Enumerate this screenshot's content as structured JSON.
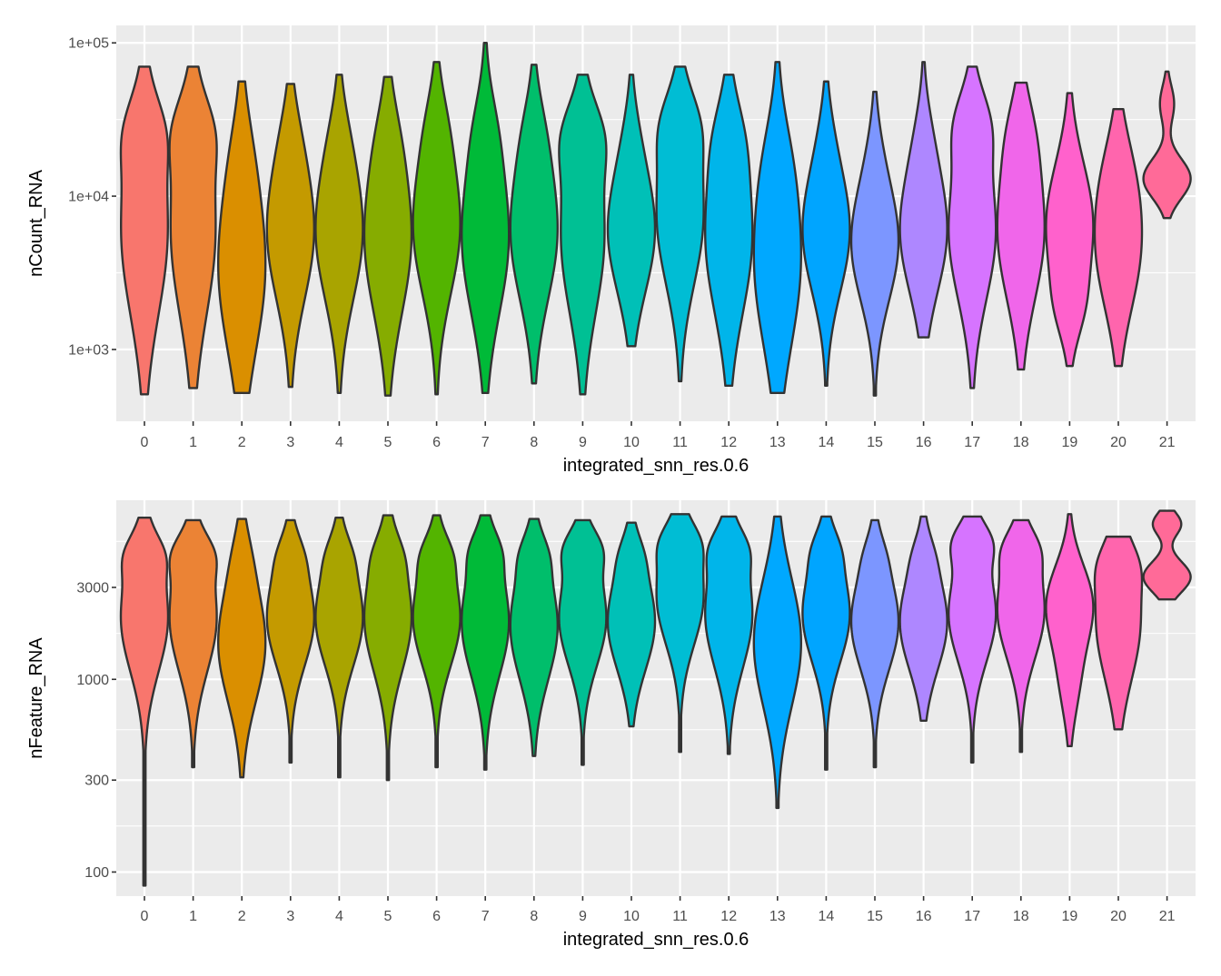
{
  "chart_data": [
    {
      "type": "violin",
      "ylabel": "nCount_RNA",
      "xlabel": "integrated_snn_res.0.6",
      "y_scale": "log10",
      "ylim": [
        340,
        130000
      ],
      "yticks": [
        {
          "value": 1000,
          "label": "1e+03"
        },
        {
          "value": 10000,
          "label": "1e+04"
        },
        {
          "value": 100000,
          "label": "1e+05"
        }
      ],
      "categories": [
        "0",
        "1",
        "2",
        "3",
        "4",
        "5",
        "6",
        "7",
        "8",
        "9",
        "10",
        "11",
        "12",
        "13",
        "14",
        "15",
        "16",
        "17",
        "18",
        "19",
        "20",
        "21"
      ],
      "series": [
        {
          "category": "0",
          "min": 510,
          "max": 70000,
          "modes": [
            [
              6000,
              1.0,
              0.55
            ],
            [
              27000,
              0.45,
              0.22
            ]
          ]
        },
        {
          "category": "1",
          "min": 560,
          "max": 70000,
          "modes": [
            [
              6000,
              1.0,
              0.55
            ],
            [
              27000,
              0.5,
              0.22
            ]
          ]
        },
        {
          "category": "2",
          "min": 520,
          "max": 56000,
          "modes": [
            [
              3500,
              1.0,
              0.55
            ],
            [
              20000,
              0.15,
              0.3
            ]
          ]
        },
        {
          "category": "3",
          "min": 570,
          "max": 54000,
          "modes": [
            [
              6000,
              1.0,
              0.45
            ],
            [
              25000,
              0.12,
              0.25
            ]
          ]
        },
        {
          "category": "4",
          "min": 520,
          "max": 62000,
          "modes": [
            [
              6000,
              1.0,
              0.45
            ],
            [
              25000,
              0.12,
              0.25
            ]
          ]
        },
        {
          "category": "5",
          "min": 500,
          "max": 60000,
          "modes": [
            [
              5500,
              1.0,
              0.5
            ],
            [
              25000,
              0.15,
              0.25
            ]
          ]
        },
        {
          "category": "6",
          "min": 510,
          "max": 75000,
          "modes": [
            [
              6500,
              1.0,
              0.45
            ],
            [
              30000,
              0.2,
              0.25
            ]
          ]
        },
        {
          "category": "7",
          "min": 520,
          "max": 100000,
          "modes": [
            [
              5500,
              1.0,
              0.5
            ],
            [
              28000,
              0.2,
              0.25
            ]
          ]
        },
        {
          "category": "8",
          "min": 600,
          "max": 72000,
          "modes": [
            [
              6000,
              1.0,
              0.45
            ],
            [
              27000,
              0.2,
              0.25
            ]
          ]
        },
        {
          "category": "9",
          "min": 510,
          "max": 62000,
          "modes": [
            [
              5500,
              0.9,
              0.5
            ],
            [
              25000,
              0.55,
              0.22
            ]
          ]
        },
        {
          "category": "10",
          "min": 1050,
          "max": 62000,
          "modes": [
            [
              6000,
              1.0,
              0.4
            ],
            [
              25000,
              0.12,
              0.25
            ]
          ]
        },
        {
          "category": "11",
          "min": 620,
          "max": 70000,
          "modes": [
            [
              7500,
              1.0,
              0.45
            ],
            [
              30000,
              0.5,
              0.22
            ]
          ]
        },
        {
          "category": "12",
          "min": 580,
          "max": 62000,
          "modes": [
            [
              5500,
              1.0,
              0.5
            ],
            [
              25000,
              0.3,
              0.25
            ]
          ]
        },
        {
          "category": "13",
          "min": 520,
          "max": 75000,
          "modes": [
            [
              3800,
              1.0,
              0.55
            ],
            [
              18000,
              0.2,
              0.3
            ]
          ]
        },
        {
          "category": "14",
          "min": 580,
          "max": 56000,
          "modes": [
            [
              6000,
              1.0,
              0.4
            ],
            [
              25000,
              0.1,
              0.25
            ]
          ]
        },
        {
          "category": "15",
          "min": 500,
          "max": 48000,
          "modes": [
            [
              5000,
              1.0,
              0.38
            ],
            [
              20000,
              0.1,
              0.25
            ]
          ]
        },
        {
          "category": "16",
          "min": 1200,
          "max": 75000,
          "modes": [
            [
              6000,
              1.0,
              0.4
            ],
            [
              25000,
              0.15,
              0.25
            ]
          ]
        },
        {
          "category": "17",
          "min": 560,
          "max": 70000,
          "modes": [
            [
              6000,
              0.95,
              0.45
            ],
            [
              30000,
              0.5,
              0.22
            ]
          ]
        },
        {
          "category": "18",
          "min": 740,
          "max": 55000,
          "modes": [
            [
              6000,
              1.0,
              0.45
            ],
            [
              27000,
              0.3,
              0.25
            ]
          ]
        },
        {
          "category": "19",
          "min": 780,
          "max": 47000,
          "modes": [
            [
              6500,
              1.0,
              0.4
            ],
            [
              1800,
              0.3,
              0.2
            ]
          ]
        },
        {
          "category": "20",
          "min": 780,
          "max": 37000,
          "modes": [
            [
              4500,
              0.8,
              0.4
            ],
            [
              15000,
              0.3,
              0.3
            ]
          ]
        },
        {
          "category": "21",
          "min": 7200,
          "max": 65000,
          "modes": [
            [
              13000,
              1.0,
              0.13
            ],
            [
              40000,
              0.3,
              0.12
            ]
          ]
        }
      ]
    },
    {
      "type": "violin",
      "ylabel": "nFeature_RNA",
      "xlabel": "integrated_snn_res.0.6",
      "y_scale": "log10",
      "ylim": [
        75,
        8500
      ],
      "yticks": [
        {
          "value": 100,
          "label": "100"
        },
        {
          "value": 300,
          "label": "300"
        },
        {
          "value": 1000,
          "label": "1000"
        },
        {
          "value": 3000,
          "label": "3000"
        }
      ],
      "categories": [
        "0",
        "1",
        "2",
        "3",
        "4",
        "5",
        "6",
        "7",
        "8",
        "9",
        "10",
        "11",
        "12",
        "13",
        "14",
        "15",
        "16",
        "17",
        "18",
        "19",
        "20",
        "21"
      ],
      "series": [
        {
          "category": "0",
          "min": 85,
          "max": 6900,
          "modes": [
            [
              2100,
              1.0,
              0.28
            ],
            [
              4500,
              0.4,
              0.1
            ]
          ]
        },
        {
          "category": "1",
          "min": 350,
          "max": 6700,
          "modes": [
            [
              2100,
              1.0,
              0.28
            ],
            [
              4500,
              0.45,
              0.1
            ]
          ]
        },
        {
          "category": "2",
          "min": 310,
          "max": 6800,
          "modes": [
            [
              1550,
              1.0,
              0.3
            ],
            [
              4500,
              0.15,
              0.15
            ]
          ]
        },
        {
          "category": "3",
          "min": 370,
          "max": 6700,
          "modes": [
            [
              2100,
              1.0,
              0.25
            ],
            [
              4500,
              0.2,
              0.1
            ]
          ]
        },
        {
          "category": "4",
          "min": 310,
          "max": 6900,
          "modes": [
            [
              2100,
              1.0,
              0.25
            ],
            [
              4500,
              0.2,
              0.1
            ]
          ]
        },
        {
          "category": "5",
          "min": 300,
          "max": 7100,
          "modes": [
            [
              2100,
              1.0,
              0.28
            ],
            [
              4500,
              0.2,
              0.1
            ]
          ]
        },
        {
          "category": "6",
          "min": 350,
          "max": 7100,
          "modes": [
            [
              2100,
              1.0,
              0.25
            ],
            [
              4500,
              0.3,
              0.1
            ]
          ]
        },
        {
          "category": "7",
          "min": 340,
          "max": 7100,
          "modes": [
            [
              2000,
              1.0,
              0.28
            ],
            [
              4700,
              0.3,
              0.1
            ]
          ]
        },
        {
          "category": "8",
          "min": 400,
          "max": 6800,
          "modes": [
            [
              1900,
              1.0,
              0.28
            ],
            [
              4500,
              0.25,
              0.1
            ]
          ]
        },
        {
          "category": "9",
          "min": 360,
          "max": 6700,
          "modes": [
            [
              2100,
              1.0,
              0.25
            ],
            [
              4800,
              0.5,
              0.1
            ]
          ]
        },
        {
          "category": "10",
          "min": 570,
          "max": 6500,
          "modes": [
            [
              2000,
              1.0,
              0.25
            ],
            [
              4500,
              0.2,
              0.1
            ]
          ]
        },
        {
          "category": "11",
          "min": 420,
          "max": 7200,
          "modes": [
            [
              2700,
              1.0,
              0.25
            ],
            [
              5200,
              0.4,
              0.1
            ]
          ]
        },
        {
          "category": "12",
          "min": 410,
          "max": 7000,
          "modes": [
            [
              2200,
              1.0,
              0.28
            ],
            [
              4800,
              0.4,
              0.1
            ]
          ]
        },
        {
          "category": "13",
          "min": 215,
          "max": 7000,
          "modes": [
            [
              1550,
              1.0,
              0.33
            ]
          ]
        },
        {
          "category": "14",
          "min": 340,
          "max": 7000,
          "modes": [
            [
              2200,
              1.0,
              0.25
            ],
            [
              4800,
              0.25,
              0.1
            ]
          ]
        },
        {
          "category": "15",
          "min": 350,
          "max": 6700,
          "modes": [
            [
              2000,
              1.0,
              0.25
            ],
            [
              4500,
              0.15,
              0.1
            ]
          ]
        },
        {
          "category": "16",
          "min": 610,
          "max": 7000,
          "modes": [
            [
              2000,
              1.0,
              0.25
            ],
            [
              4500,
              0.15,
              0.1
            ]
          ]
        },
        {
          "category": "17",
          "min": 370,
          "max": 7000,
          "modes": [
            [
              2200,
              0.9,
              0.25
            ],
            [
              5200,
              0.5,
              0.1
            ]
          ]
        },
        {
          "category": "18",
          "min": 420,
          "max": 6700,
          "modes": [
            [
              2300,
              1.0,
              0.25
            ],
            [
              4800,
              0.4,
              0.1
            ]
          ]
        },
        {
          "category": "19",
          "min": 450,
          "max": 7200,
          "modes": [
            [
              2500,
              1.0,
              0.2
            ],
            [
              1000,
              0.4,
              0.2
            ]
          ]
        },
        {
          "category": "20",
          "min": 550,
          "max": 5500,
          "modes": [
            [
              2000,
              0.8,
              0.3
            ],
            [
              4000,
              0.3,
              0.12
            ]
          ]
        },
        {
          "category": "21",
          "min": 2600,
          "max": 7500,
          "modes": [
            [
              3400,
              1.0,
              0.08
            ],
            [
              6400,
              0.6,
              0.06
            ]
          ]
        }
      ]
    }
  ],
  "colors": [
    "#F8766D",
    "#EB8335",
    "#DA8F00",
    "#C49A00",
    "#A9A400",
    "#86AC00",
    "#53B400",
    "#00BA38",
    "#00BE6B",
    "#00C094",
    "#00C0B7",
    "#00BDD4",
    "#00B5EA",
    "#00A8FF",
    "#00A5FF",
    "#7C96FF",
    "#AE87FF",
    "#D674FF",
    "#F066EA",
    "#FF61CC",
    "#FF65AD",
    "#FF6A98"
  ]
}
